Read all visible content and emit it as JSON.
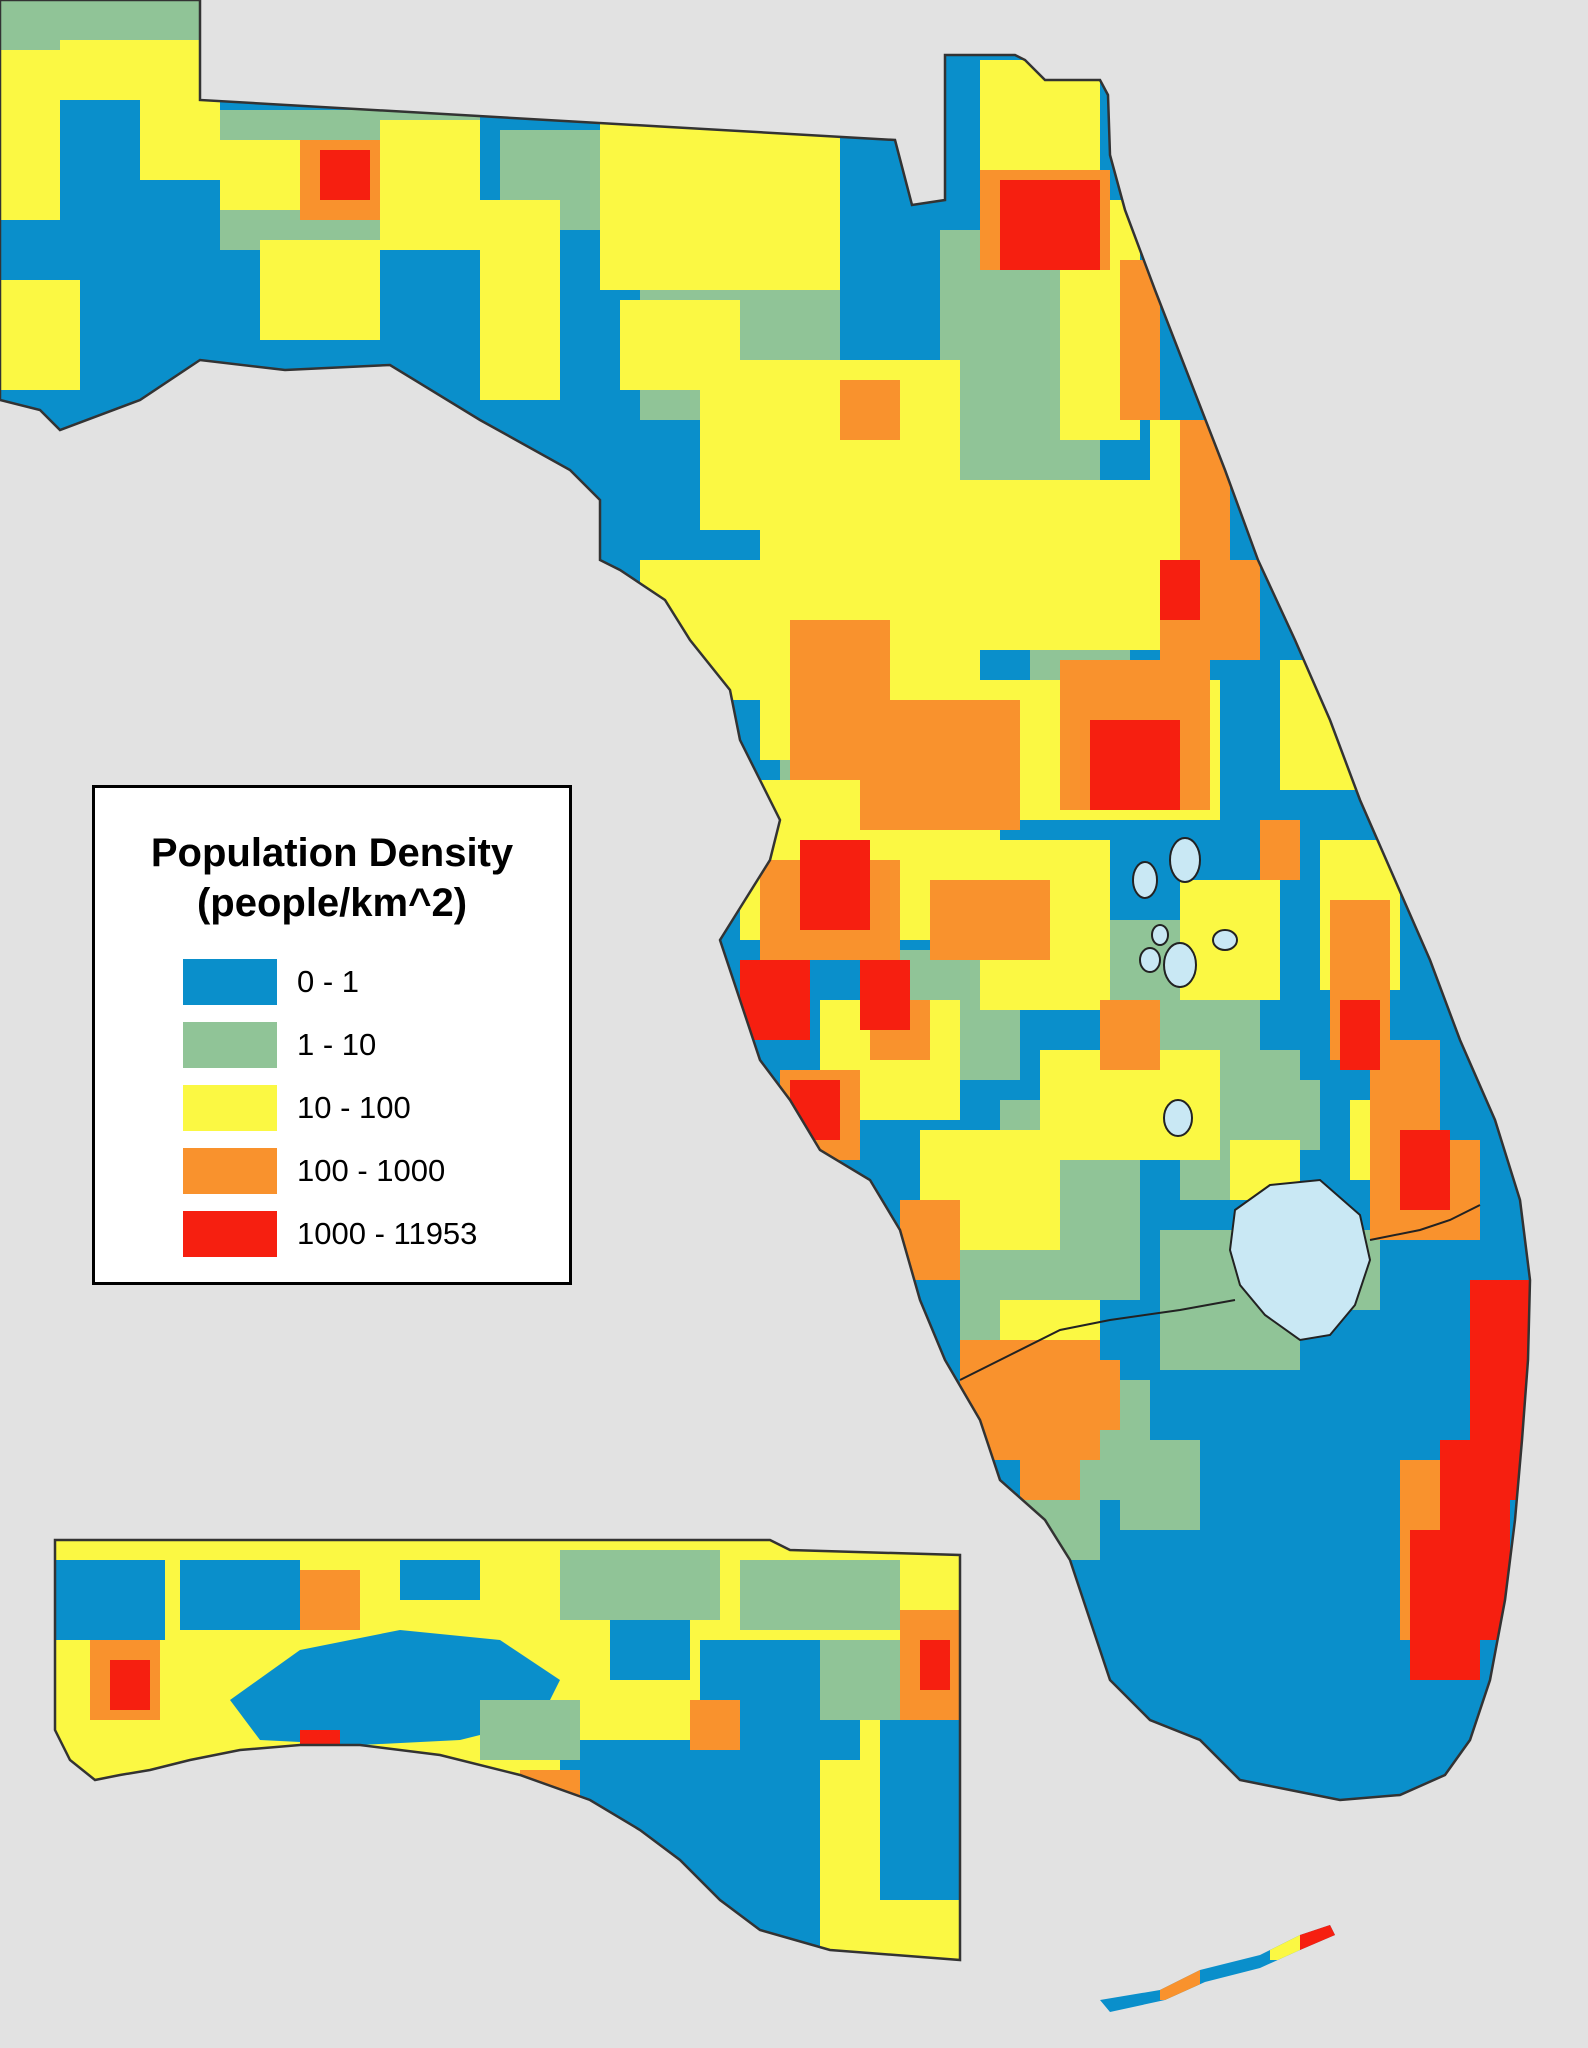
{
  "map": {
    "region": "Florida",
    "background_color": "#e2e2e2",
    "lake_color": "#c9e8f4",
    "coastline_color": "#333333"
  },
  "legend": {
    "title_line1": "Population Density",
    "title_line2": "(people/km^2)",
    "classes": [
      {
        "label": "0 - 1",
        "color": "#0a8fcb"
      },
      {
        "label": "1 - 10",
        "color": "#90c497"
      },
      {
        "label": "10 - 100",
        "color": "#fbf843"
      },
      {
        "label": "100 - 1000",
        "color": "#f9922d"
      },
      {
        "label": "1000 - 11953",
        "color": "#f61f10"
      }
    ]
  }
}
